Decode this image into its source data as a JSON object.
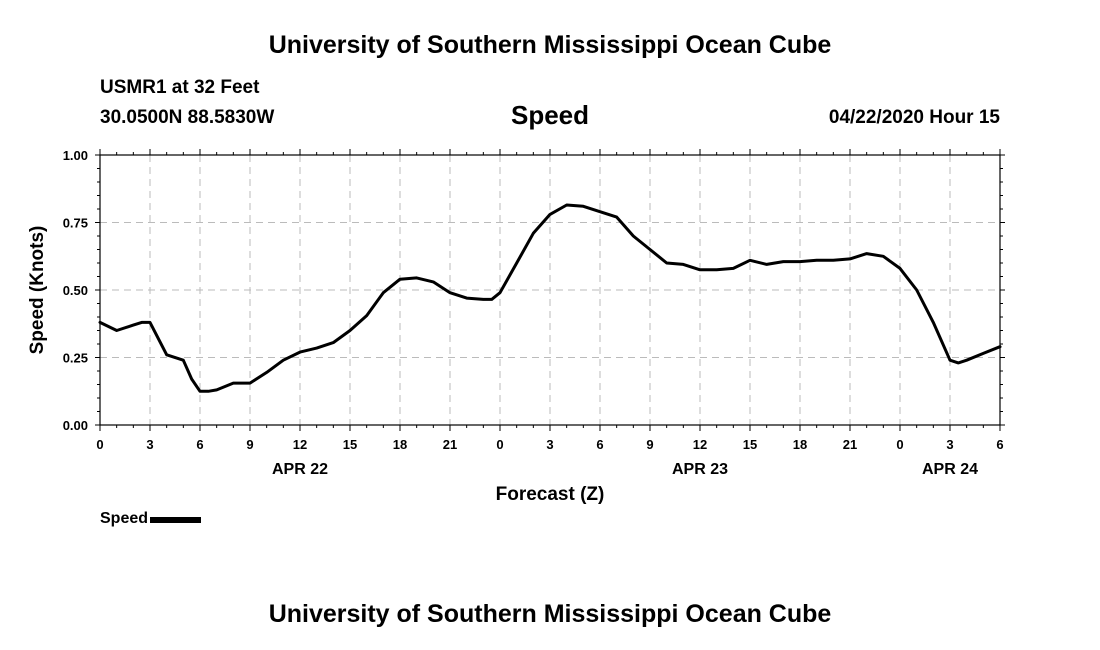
{
  "header": {
    "title": "University of Southern Mississippi Ocean Cube",
    "station": "USMR1 at 32 Feet",
    "coordinates": "30.0500N 88.5830W",
    "datetime": "04/22/2020 Hour 15"
  },
  "footer": {
    "title": "University of Southern Mississippi Ocean Cube"
  },
  "legend": {
    "label": "Speed"
  },
  "chart_data": {
    "type": "line",
    "title": "Speed",
    "xlabel": "Forecast (Z)",
    "ylabel": "Speed (Knots)",
    "ylim": [
      0,
      1.0
    ],
    "y_ticks": [
      "0.00",
      "0.25",
      "0.50",
      "0.75",
      "1.00"
    ],
    "x_range_hours": [
      0,
      54
    ],
    "x_tick_labels": [
      "0",
      "3",
      "6",
      "9",
      "12",
      "15",
      "18",
      "21",
      "0",
      "3",
      "6",
      "9",
      "12",
      "15",
      "18",
      "21",
      "0",
      "3",
      "6"
    ],
    "date_labels": [
      {
        "label": "APR 22",
        "hour": 12
      },
      {
        "label": "APR 23",
        "hour": 36
      },
      {
        "label": "APR 24",
        "hour": 51
      }
    ],
    "grid": true,
    "legend_position": "bottom-left",
    "series": [
      {
        "name": "Speed",
        "color": "#000000",
        "x": [
          0,
          1,
          2,
          2.5,
          3,
          4,
          5,
          5.5,
          6,
          6.5,
          7,
          8,
          8.5,
          9,
          10,
          11,
          12,
          13,
          14,
          15,
          16,
          17,
          18,
          19,
          20,
          21,
          22,
          23,
          23.5,
          24,
          25,
          26,
          27,
          28,
          29,
          30,
          31,
          32,
          33,
          34,
          35,
          36,
          37,
          38,
          39,
          40,
          41,
          42,
          43,
          44,
          45,
          46,
          47,
          48,
          49,
          50,
          51,
          51.5,
          52,
          53,
          54
        ],
        "y": [
          0.38,
          0.35,
          0.37,
          0.38,
          0.38,
          0.26,
          0.24,
          0.17,
          0.125,
          0.125,
          0.13,
          0.155,
          0.155,
          0.155,
          0.195,
          0.24,
          0.27,
          0.285,
          0.305,
          0.35,
          0.405,
          0.49,
          0.54,
          0.545,
          0.53,
          0.49,
          0.47,
          0.465,
          0.465,
          0.49,
          0.6,
          0.71,
          0.78,
          0.815,
          0.81,
          0.79,
          0.77,
          0.7,
          0.65,
          0.6,
          0.595,
          0.575,
          0.575,
          0.58,
          0.61,
          0.595,
          0.605,
          0.605,
          0.61,
          0.61,
          0.615,
          0.635,
          0.625,
          0.58,
          0.5,
          0.38,
          0.24,
          0.23,
          0.24,
          0.265,
          0.29
        ]
      }
    ]
  }
}
